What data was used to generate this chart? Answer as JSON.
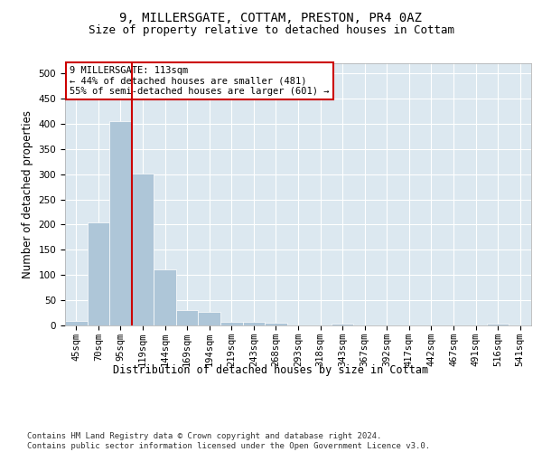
{
  "title": "9, MILLERSGATE, COTTAM, PRESTON, PR4 0AZ",
  "subtitle": "Size of property relative to detached houses in Cottam",
  "xlabel": "Distribution of detached houses by size in Cottam",
  "ylabel": "Number of detached properties",
  "bin_labels": [
    "45sqm",
    "70sqm",
    "95sqm",
    "119sqm",
    "144sqm",
    "169sqm",
    "194sqm",
    "219sqm",
    "243sqm",
    "268sqm",
    "293sqm",
    "318sqm",
    "343sqm",
    "367sqm",
    "392sqm",
    "417sqm",
    "442sqm",
    "467sqm",
    "491sqm",
    "516sqm",
    "541sqm"
  ],
  "bar_values": [
    9,
    205,
    405,
    302,
    112,
    30,
    27,
    8,
    7,
    6,
    0,
    0,
    3,
    0,
    0,
    0,
    0,
    0,
    0,
    4,
    0
  ],
  "bar_color": "#aec6d8",
  "bar_edge_color": "#ffffff",
  "vline_x": 2.5,
  "vline_color": "#cc0000",
  "annotation_text": "9 MILLERSGATE: 113sqm\n← 44% of detached houses are smaller (481)\n55% of semi-detached houses are larger (601) →",
  "annotation_box_color": "#ffffff",
  "annotation_box_edge_color": "#cc0000",
  "ylim": [
    0,
    520
  ],
  "yticks": [
    0,
    50,
    100,
    150,
    200,
    250,
    300,
    350,
    400,
    450,
    500
  ],
  "footer_text": "Contains HM Land Registry data © Crown copyright and database right 2024.\nContains public sector information licensed under the Open Government Licence v3.0.",
  "background_color": "#dce8f0",
  "grid_color": "#ffffff",
  "title_fontsize": 10,
  "subtitle_fontsize": 9,
  "axis_label_fontsize": 8.5,
  "tick_fontsize": 7.5,
  "annotation_fontsize": 7.5,
  "footer_fontsize": 6.5
}
